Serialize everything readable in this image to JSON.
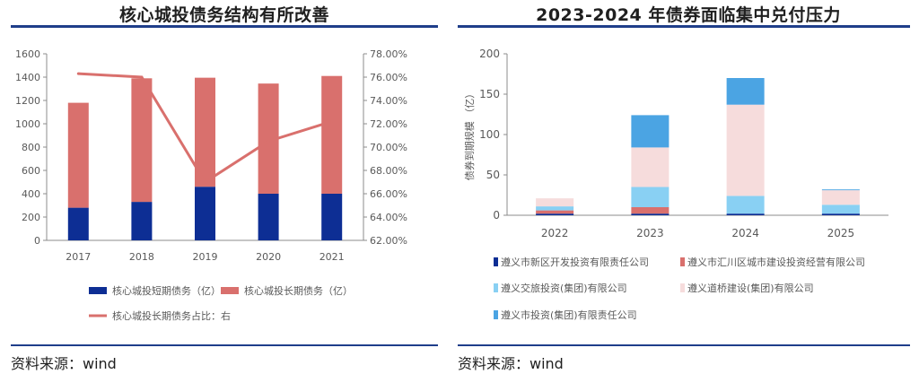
{
  "left": {
    "title": "核心城投债务结构有所改善",
    "source": "资料来源：wind",
    "chart_data": {
      "type": "bar",
      "stacked": true,
      "categories": [
        "2017",
        "2018",
        "2019",
        "2020",
        "2021"
      ],
      "series": [
        {
          "name": "核心城投短期债务（亿）",
          "values": [
            280,
            330,
            460,
            400,
            400
          ],
          "color": "#0d2e94",
          "axis": "left"
        },
        {
          "name": "核心城投长期债务（亿）",
          "values": [
            900,
            1060,
            935,
            945,
            1010
          ],
          "color": "#d9706d",
          "axis": "left"
        },
        {
          "name": "核心城投长期债务占比：右",
          "type": "line",
          "values": [
            76.3,
            76.0,
            67.0,
            70.5,
            72.2
          ],
          "color": "#d9706d",
          "axis": "right"
        }
      ],
      "yticks_left": [
        "0",
        "200",
        "400",
        "600",
        "800",
        "1000",
        "1200",
        "1400",
        "1600"
      ],
      "ylim_left": [
        0,
        1600
      ],
      "yticks_right": [
        "62.00%",
        "64.00%",
        "66.00%",
        "68.00%",
        "70.00%",
        "72.00%",
        "74.00%",
        "76.00%",
        "78.00%"
      ],
      "ylim_right": [
        62,
        78
      ]
    }
  },
  "right": {
    "title": "2023-2024 年债券面临集中兑付压力",
    "source": "资料来源：wind",
    "chart_data": {
      "type": "bar",
      "stacked": true,
      "categories": [
        "2022",
        "2023",
        "2024",
        "2025"
      ],
      "ylabel": "债券到期规模 （亿）",
      "yticks": [
        "0",
        "50",
        "100",
        "150",
        "200"
      ],
      "ylim": [
        0,
        200
      ],
      "series": [
        {
          "name": "遵义市新区开发投资有限责任公司",
          "values": [
            2,
            2,
            2,
            2
          ],
          "color": "#0d2e94"
        },
        {
          "name": "遵义市汇川区城市建设投资经营有限公司",
          "values": [
            4,
            8,
            0,
            0
          ],
          "color": "#d9706d"
        },
        {
          "name": "遵义交旅投资(集团)有限公司",
          "values": [
            5,
            25,
            22,
            11
          ],
          "color": "#89d0f3"
        },
        {
          "name": "遵义道桥建设(集团)有限公司",
          "values": [
            10,
            49,
            113,
            18
          ],
          "color": "#f6dcdc"
        },
        {
          "name": "遵义市投资(集团)有限责任公司",
          "values": [
            0,
            40,
            33,
            1
          ],
          "color": "#4ba4e3"
        }
      ]
    }
  }
}
